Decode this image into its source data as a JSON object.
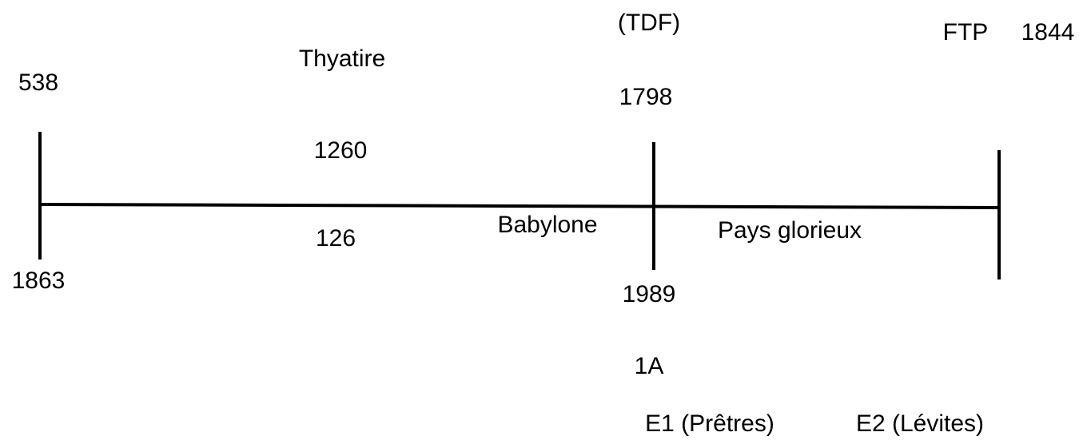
{
  "labels": [
    "(TDF)",
    "FTP",
    "1844",
    "Thyatire",
    "538",
    "1798",
    "1260",
    "Babylone",
    "Pays glorieux",
    "126",
    "1863",
    "1989",
    "1A",
    "E1 (Prêtres)",
    "E2 (Lévites)"
  ]
}
